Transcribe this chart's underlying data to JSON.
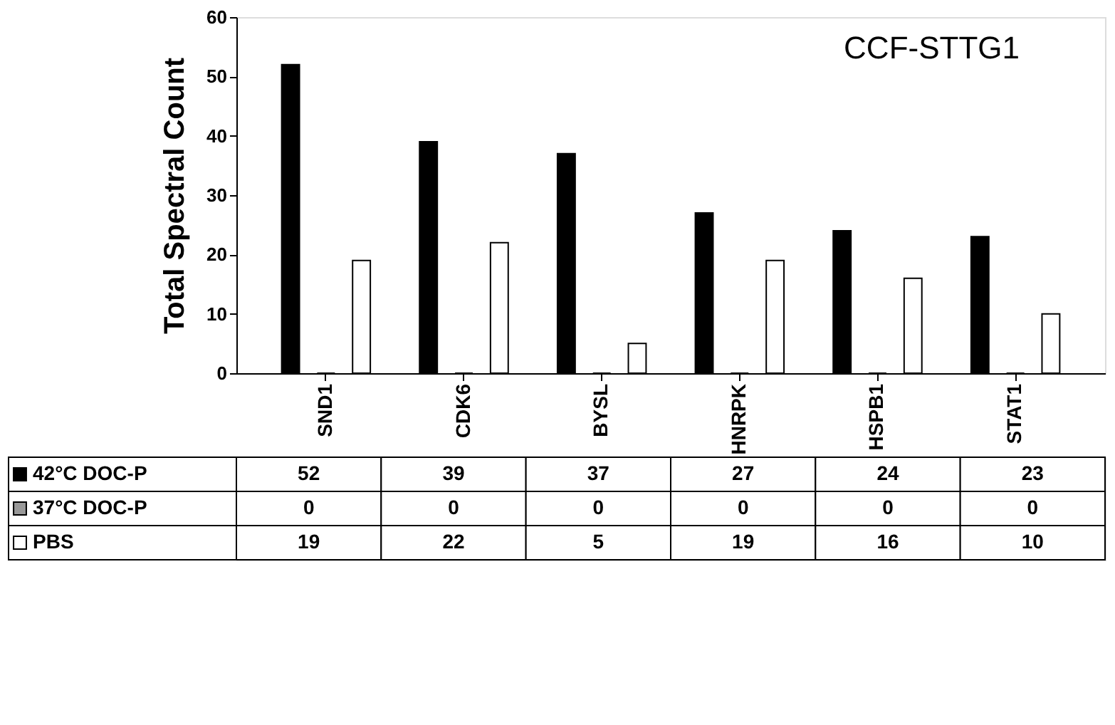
{
  "chart_data": {
    "type": "bar",
    "title": "CCF-STTG1",
    "ylabel": "Total Spectral Count",
    "categories": [
      "SND1",
      "CDK6",
      "BYSL",
      "HNRPK",
      "HSPB1",
      "STAT1"
    ],
    "series": [
      {
        "name": "42°C DOC-P",
        "color": "#000000",
        "values": [
          52,
          39,
          37,
          27,
          24,
          23
        ]
      },
      {
        "name": "37°C DOC-P",
        "color": "#999999",
        "values": [
          0,
          0,
          0,
          0,
          0,
          0
        ]
      },
      {
        "name": "PBS",
        "color": "#ffffff",
        "values": [
          19,
          22,
          5,
          19,
          16,
          10
        ]
      }
    ],
    "ylim": [
      0,
      60
    ],
    "yticks": [
      0,
      10,
      20,
      30,
      40,
      50,
      60
    ],
    "grid": false,
    "data_labels": true,
    "legend": "bottom left"
  }
}
